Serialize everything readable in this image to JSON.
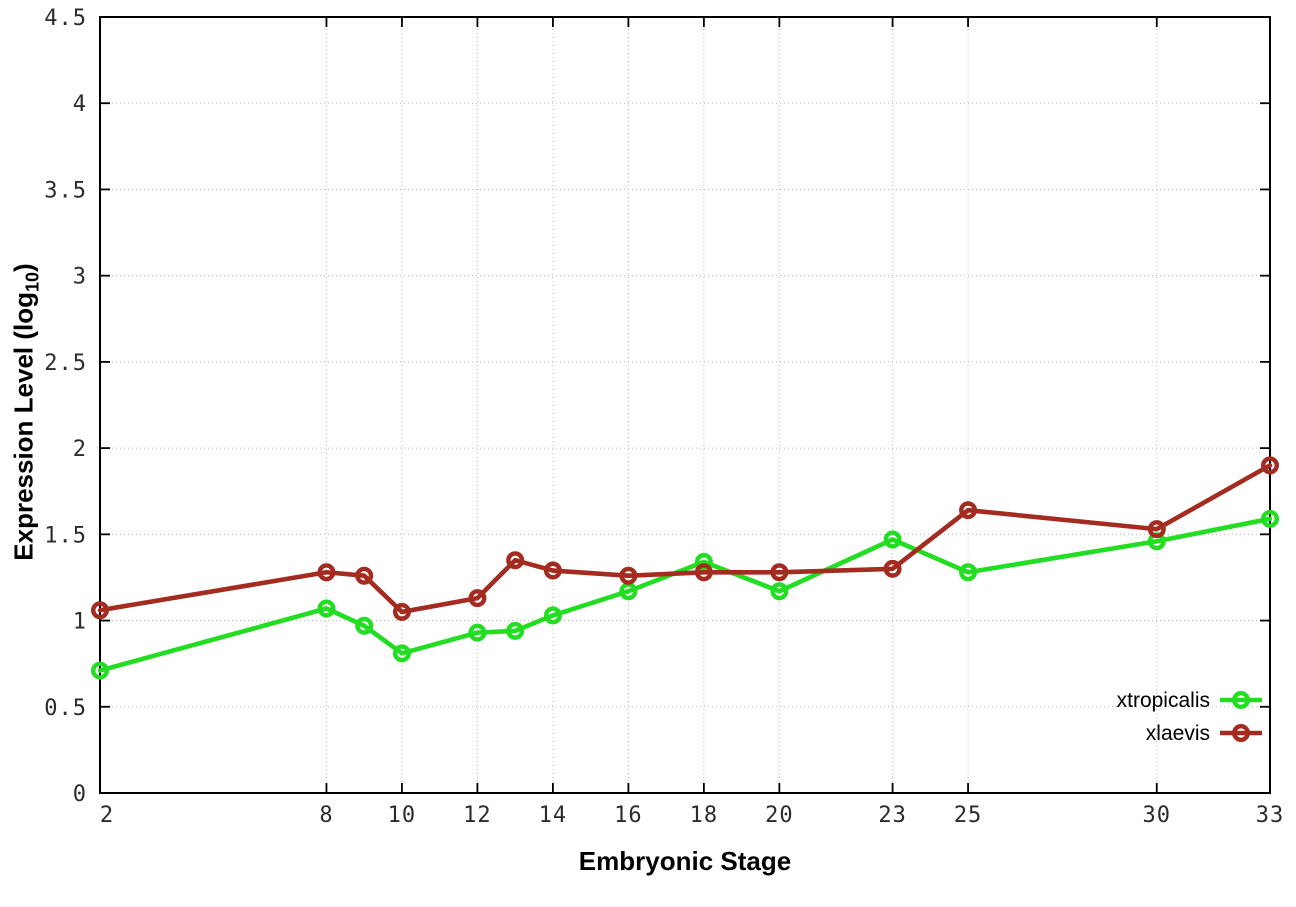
{
  "chart_data": {
    "type": "line",
    "title": "",
    "xlabel": "Embryonic Stage",
    "ylabel": "Expression Level (log10)",
    "ylabel_parts": {
      "main": "Expression Level (log",
      "sub": "10",
      "close": ")"
    },
    "xlim": [
      2,
      33
    ],
    "ylim": [
      0,
      4.5
    ],
    "grid": true,
    "legend_position": "inside-bottom-right",
    "marker": "open-circle",
    "x": [
      2,
      8,
      9,
      10,
      12,
      13,
      14,
      16,
      18,
      20,
      23,
      25,
      30,
      33
    ],
    "x_ticks": [
      2,
      8,
      10,
      12,
      14,
      16,
      18,
      20,
      23,
      25,
      30,
      33
    ],
    "y_ticks": [
      {
        "v": 0,
        "label": "0"
      },
      {
        "v": 0.5,
        "label": "0.5"
      },
      {
        "v": 1,
        "label": "1"
      },
      {
        "v": 1.5,
        "label": "1.5"
      },
      {
        "v": 2,
        "label": "2"
      },
      {
        "v": 2.5,
        "label": "2.5"
      },
      {
        "v": 3,
        "label": "3"
      },
      {
        "v": 3.5,
        "label": "3.5"
      },
      {
        "v": 4,
        "label": "4"
      },
      {
        "v": 4.5,
        "label": "4.5"
      }
    ],
    "series": [
      {
        "name": "xtropicalis",
        "color": "#22dd22",
        "values": [
          0.71,
          1.07,
          0.97,
          0.81,
          0.93,
          0.94,
          1.03,
          1.17,
          1.34,
          1.17,
          1.47,
          1.28,
          1.46,
          1.59
        ]
      },
      {
        "name": "xlaevis",
        "color": "#a32b20",
        "values": [
          1.06,
          1.28,
          1.26,
          1.05,
          1.13,
          1.35,
          1.29,
          1.26,
          1.28,
          1.28,
          1.3,
          1.64,
          1.53,
          1.9
        ]
      }
    ]
  },
  "colors": {
    "grid": "#b9b9b9",
    "axis": "#000000",
    "tick_text": "#2b2b2b",
    "background": "#ffffff"
  }
}
